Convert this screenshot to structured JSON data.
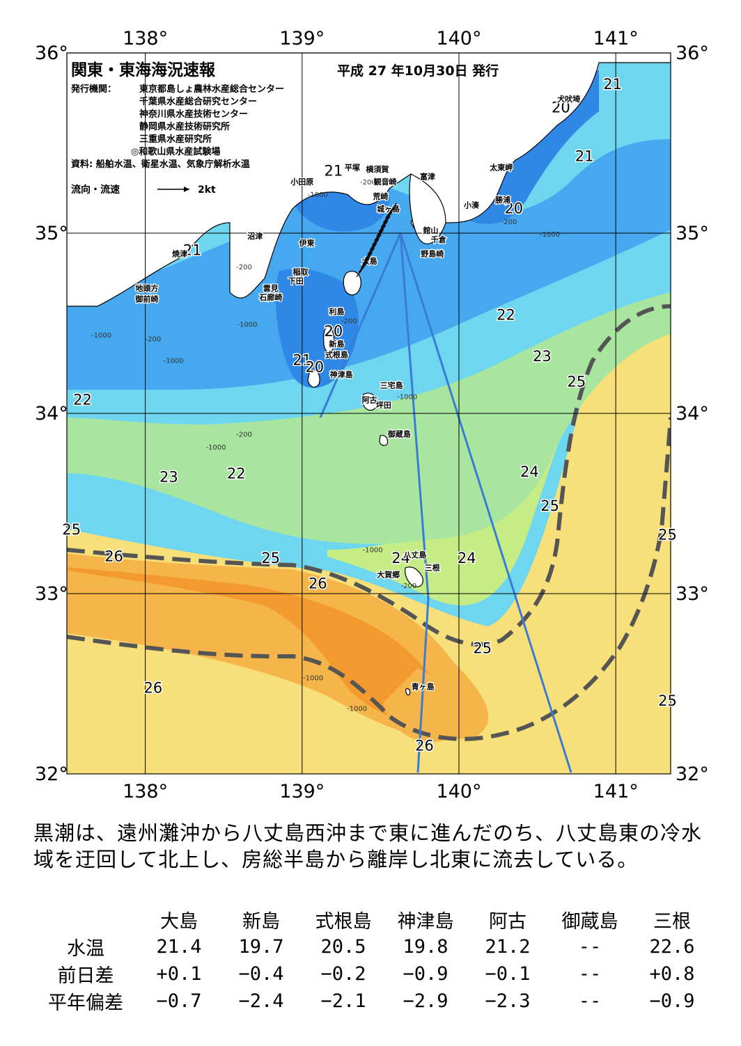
{
  "title": "関東・東海海況速報",
  "issue_date": "平成 27 年10月30日 発行",
  "issuers_label": "発行機関：",
  "issuers": [
    "東京都島しょ農林水産総合センター",
    "千葉県水産総合研究センター",
    "神奈川県水産技術センター",
    "静岡県水産技術研究所",
    "三重県水産研究所",
    "◎和歌山県水産試験場"
  ],
  "sources": "資料: 船舶水温、衛星水温、気象庁解析水温",
  "current_legend_label": "流向・流速",
  "current_legend_scale": "2kt",
  "lon_labels": [
    {
      "lon": 138,
      "text": "138°"
    },
    {
      "lon": 139,
      "text": "139°"
    },
    {
      "lon": 140,
      "text": "140°"
    },
    {
      "lon": 141,
      "text": "141°"
    }
  ],
  "lat_labels": [
    {
      "lat": 36,
      "text": "36°"
    },
    {
      "lat": 35,
      "text": "35°"
    },
    {
      "lat": 34,
      "text": "34°"
    },
    {
      "lat": 33,
      "text": "33°"
    },
    {
      "lat": 32,
      "text": "32°"
    }
  ],
  "colors": {
    "t20": "#2f88e6",
    "t21": "#46a9ef",
    "t22": "#6fd6ef",
    "t23": "#a8e6a0",
    "t24": "#c6ec86",
    "t25": "#f7df7a",
    "t26": "#f6b54a",
    "t27": "#f39a2f",
    "land": "#ffffff",
    "kuroshio": "#555555",
    "track": "#3a7bd5"
  },
  "place_names": [
    {
      "text": "犬吠埼",
      "lon": 140.7,
      "lat": 35.73
    },
    {
      "text": "太東岬",
      "lon": 140.27,
      "lat": 35.35
    },
    {
      "text": "勝浦",
      "lon": 140.28,
      "lat": 35.17
    },
    {
      "text": "小湊",
      "lon": 140.08,
      "lat": 35.14
    },
    {
      "text": "平塚",
      "lon": 139.32,
      "lat": 35.35
    },
    {
      "text": "横須賀",
      "lon": 139.48,
      "lat": 35.34
    },
    {
      "text": "観音崎",
      "lon": 139.53,
      "lat": 35.27
    },
    {
      "text": "荒崎",
      "lon": 139.5,
      "lat": 35.19
    },
    {
      "text": "富津",
      "lon": 139.8,
      "lat": 35.3
    },
    {
      "text": "城ヶ島",
      "lon": 139.55,
      "lat": 35.12
    },
    {
      "text": "館山",
      "lon": 139.82,
      "lat": 35.0
    },
    {
      "text": "千倉",
      "lon": 139.87,
      "lat": 34.95
    },
    {
      "text": "野島崎",
      "lon": 139.83,
      "lat": 34.87
    },
    {
      "text": "小田原",
      "lon": 139.0,
      "lat": 35.27
    },
    {
      "text": "沼津",
      "lon": 138.7,
      "lat": 34.97
    },
    {
      "text": "伊東",
      "lon": 139.03,
      "lat": 34.93
    },
    {
      "text": "焼津",
      "lon": 138.22,
      "lat": 34.87
    },
    {
      "text": "稲取",
      "lon": 138.99,
      "lat": 34.77
    },
    {
      "text": "下田",
      "lon": 138.96,
      "lat": 34.72
    },
    {
      "text": "雲見",
      "lon": 138.8,
      "lat": 34.68
    },
    {
      "text": "石廊崎",
      "lon": 138.8,
      "lat": 34.63
    },
    {
      "text": "地頭方",
      "lon": 138.01,
      "lat": 34.68
    },
    {
      "text": "御前崎",
      "lon": 138.01,
      "lat": 34.62
    },
    {
      "text": "大島",
      "lon": 139.43,
      "lat": 34.83
    },
    {
      "text": "利島",
      "lon": 139.22,
      "lat": 34.55
    },
    {
      "text": "新島",
      "lon": 139.22,
      "lat": 34.37
    },
    {
      "text": "式根島",
      "lon": 139.22,
      "lat": 34.31
    },
    {
      "text": "神津島",
      "lon": 139.25,
      "lat": 34.2
    },
    {
      "text": "三宅島",
      "lon": 139.57,
      "lat": 34.14
    },
    {
      "text": "阿古",
      "lon": 139.43,
      "lat": 34.06
    },
    {
      "text": "坪田",
      "lon": 139.52,
      "lat": 34.03
    },
    {
      "text": "御蔵島",
      "lon": 139.62,
      "lat": 33.87
    },
    {
      "text": "八丈島",
      "lon": 139.72,
      "lat": 33.2
    },
    {
      "text": "三根",
      "lon": 139.83,
      "lat": 33.13
    },
    {
      "text": "大賀郷",
      "lon": 139.55,
      "lat": 33.09
    },
    {
      "text": "青ヶ島",
      "lon": 139.77,
      "lat": 32.47
    }
  ],
  "isotherm_labels": [
    {
      "text": "21",
      "lon": 140.98,
      "lat": 35.83
    },
    {
      "text": "20",
      "lon": 140.65,
      "lat": 35.7
    },
    {
      "text": "21",
      "lon": 140.8,
      "lat": 35.43
    },
    {
      "text": "20",
      "lon": 140.35,
      "lat": 35.14
    },
    {
      "text": "21",
      "lon": 139.2,
      "lat": 35.35
    },
    {
      "text": "21",
      "lon": 138.3,
      "lat": 34.91
    },
    {
      "text": "22",
      "lon": 140.3,
      "lat": 34.55
    },
    {
      "text": "20",
      "lon": 139.2,
      "lat": 34.46
    },
    {
      "text": "21",
      "lon": 139.0,
      "lat": 34.3
    },
    {
      "text": "20",
      "lon": 139.08,
      "lat": 34.26
    },
    {
      "text": "23",
      "lon": 140.53,
      "lat": 34.32
    },
    {
      "text": "25",
      "lon": 140.75,
      "lat": 34.18
    },
    {
      "text": "22",
      "lon": 137.6,
      "lat": 34.08
    },
    {
      "text": "24",
      "lon": 140.45,
      "lat": 33.68
    },
    {
      "text": "23",
      "lon": 138.15,
      "lat": 33.65
    },
    {
      "text": "22",
      "lon": 138.58,
      "lat": 33.67
    },
    {
      "text": "25",
      "lon": 140.58,
      "lat": 33.49
    },
    {
      "text": "25",
      "lon": 137.53,
      "lat": 33.36
    },
    {
      "text": "25",
      "lon": 141.33,
      "lat": 33.33
    },
    {
      "text": "26",
      "lon": 137.8,
      "lat": 33.21
    },
    {
      "text": "25",
      "lon": 138.8,
      "lat": 33.2
    },
    {
      "text": "24",
      "lon": 139.63,
      "lat": 33.2
    },
    {
      "text": "24",
      "lon": 140.05,
      "lat": 33.2
    },
    {
      "text": "26",
      "lon": 139.1,
      "lat": 33.06
    },
    {
      "text": "25",
      "lon": 140.15,
      "lat": 32.7
    },
    {
      "text": "26",
      "lon": 138.05,
      "lat": 32.48
    },
    {
      "text": "25",
      "lon": 141.33,
      "lat": 32.41
    },
    {
      "text": "26",
      "lon": 139.78,
      "lat": 32.16
    }
  ],
  "depth_labels": [
    {
      "text": "-1000",
      "lon": 139.1,
      "lat": 35.2
    },
    {
      "text": "-200",
      "lon": 139.42,
      "lat": 35.27
    },
    {
      "text": "-1000",
      "lon": 140.58,
      "lat": 34.98
    },
    {
      "text": "-200",
      "lon": 140.32,
      "lat": 35.05
    },
    {
      "text": "-200",
      "lon": 138.63,
      "lat": 34.8
    },
    {
      "text": "-1000",
      "lon": 138.65,
      "lat": 34.48
    },
    {
      "text": "-1000",
      "lon": 137.72,
      "lat": 34.42
    },
    {
      "text": "-200",
      "lon": 138.05,
      "lat": 34.4
    },
    {
      "text": "-1000",
      "lon": 138.18,
      "lat": 34.28
    },
    {
      "text": "-200",
      "lon": 139.3,
      "lat": 34.5
    },
    {
      "text": "-1000",
      "lon": 139.67,
      "lat": 34.08
    },
    {
      "text": "-200",
      "lon": 138.63,
      "lat": 33.87
    },
    {
      "text": "-1000",
      "lon": 138.45,
      "lat": 33.8
    },
    {
      "text": "-1000",
      "lon": 139.45,
      "lat": 33.23
    },
    {
      "text": "-200",
      "lon": 139.68,
      "lat": 33.03
    },
    {
      "text": "-1000",
      "lon": 139.07,
      "lat": 32.52
    },
    {
      "text": "-1000",
      "lon": 139.35,
      "lat": 32.35
    }
  ],
  "summary": "黒潮は、遠州灘沖から八丈島西沖まで東に進んだのち、八丈島東の冷水域を迂回して北上し、房総半島から離岸し北東に流去している。",
  "table": {
    "columns": [
      "大島",
      "新島",
      "式根島",
      "神津島",
      "阿古",
      "御蔵島",
      "三根"
    ],
    "rows": [
      {
        "label": "水温",
        "values": [
          "21.4",
          "19.7",
          "20.5",
          "19.8",
          "21.2",
          "--",
          "22.6"
        ]
      },
      {
        "label": "前日差",
        "values": [
          "+0.1",
          "−0.4",
          "−0.2",
          "−0.9",
          "−0.1",
          "--",
          "+0.8"
        ]
      },
      {
        "label": "平年偏差",
        "values": [
          "−0.7",
          "−2.4",
          "−2.1",
          "−2.9",
          "−2.3",
          "--",
          "−0.9"
        ]
      }
    ]
  }
}
